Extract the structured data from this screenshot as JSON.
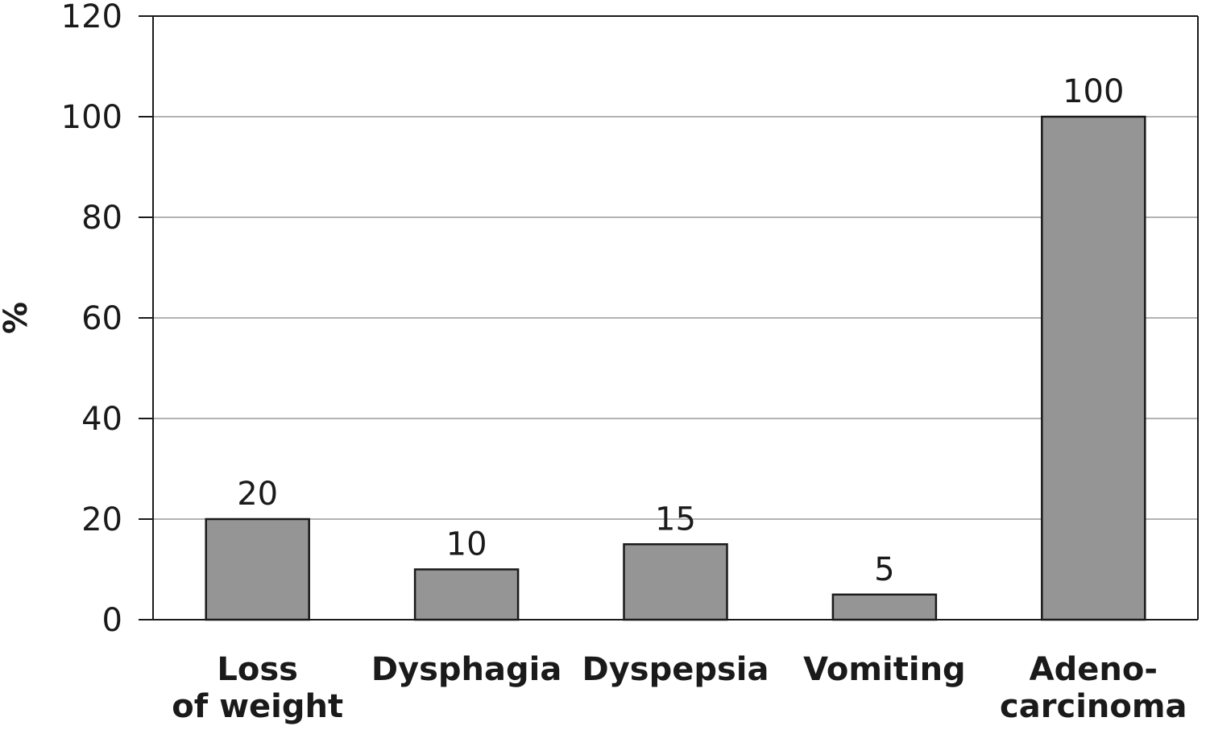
{
  "chart_data": {
    "type": "bar",
    "categories": [
      [
        "Loss",
        "of weight"
      ],
      [
        "Dysphagia"
      ],
      [
        "Dyspepsia"
      ],
      [
        "Vomiting"
      ],
      [
        "Adeno-",
        "carcinoma"
      ]
    ],
    "values": [
      20,
      10,
      15,
      5,
      100
    ],
    "data_labels": [
      "20",
      "10",
      "15",
      "5",
      "100"
    ],
    "title": "",
    "xlabel": "",
    "ylabel": "%",
    "ylim": [
      0,
      120
    ],
    "yticks": [
      0,
      20,
      40,
      60,
      80,
      100,
      120
    ],
    "grid": true,
    "legend": "none",
    "colors": {
      "bar_fill": "#959595",
      "bar_stroke": "#1a1a1a",
      "grid": "#b3b3b3",
      "axis": "#1a1a1a"
    }
  }
}
